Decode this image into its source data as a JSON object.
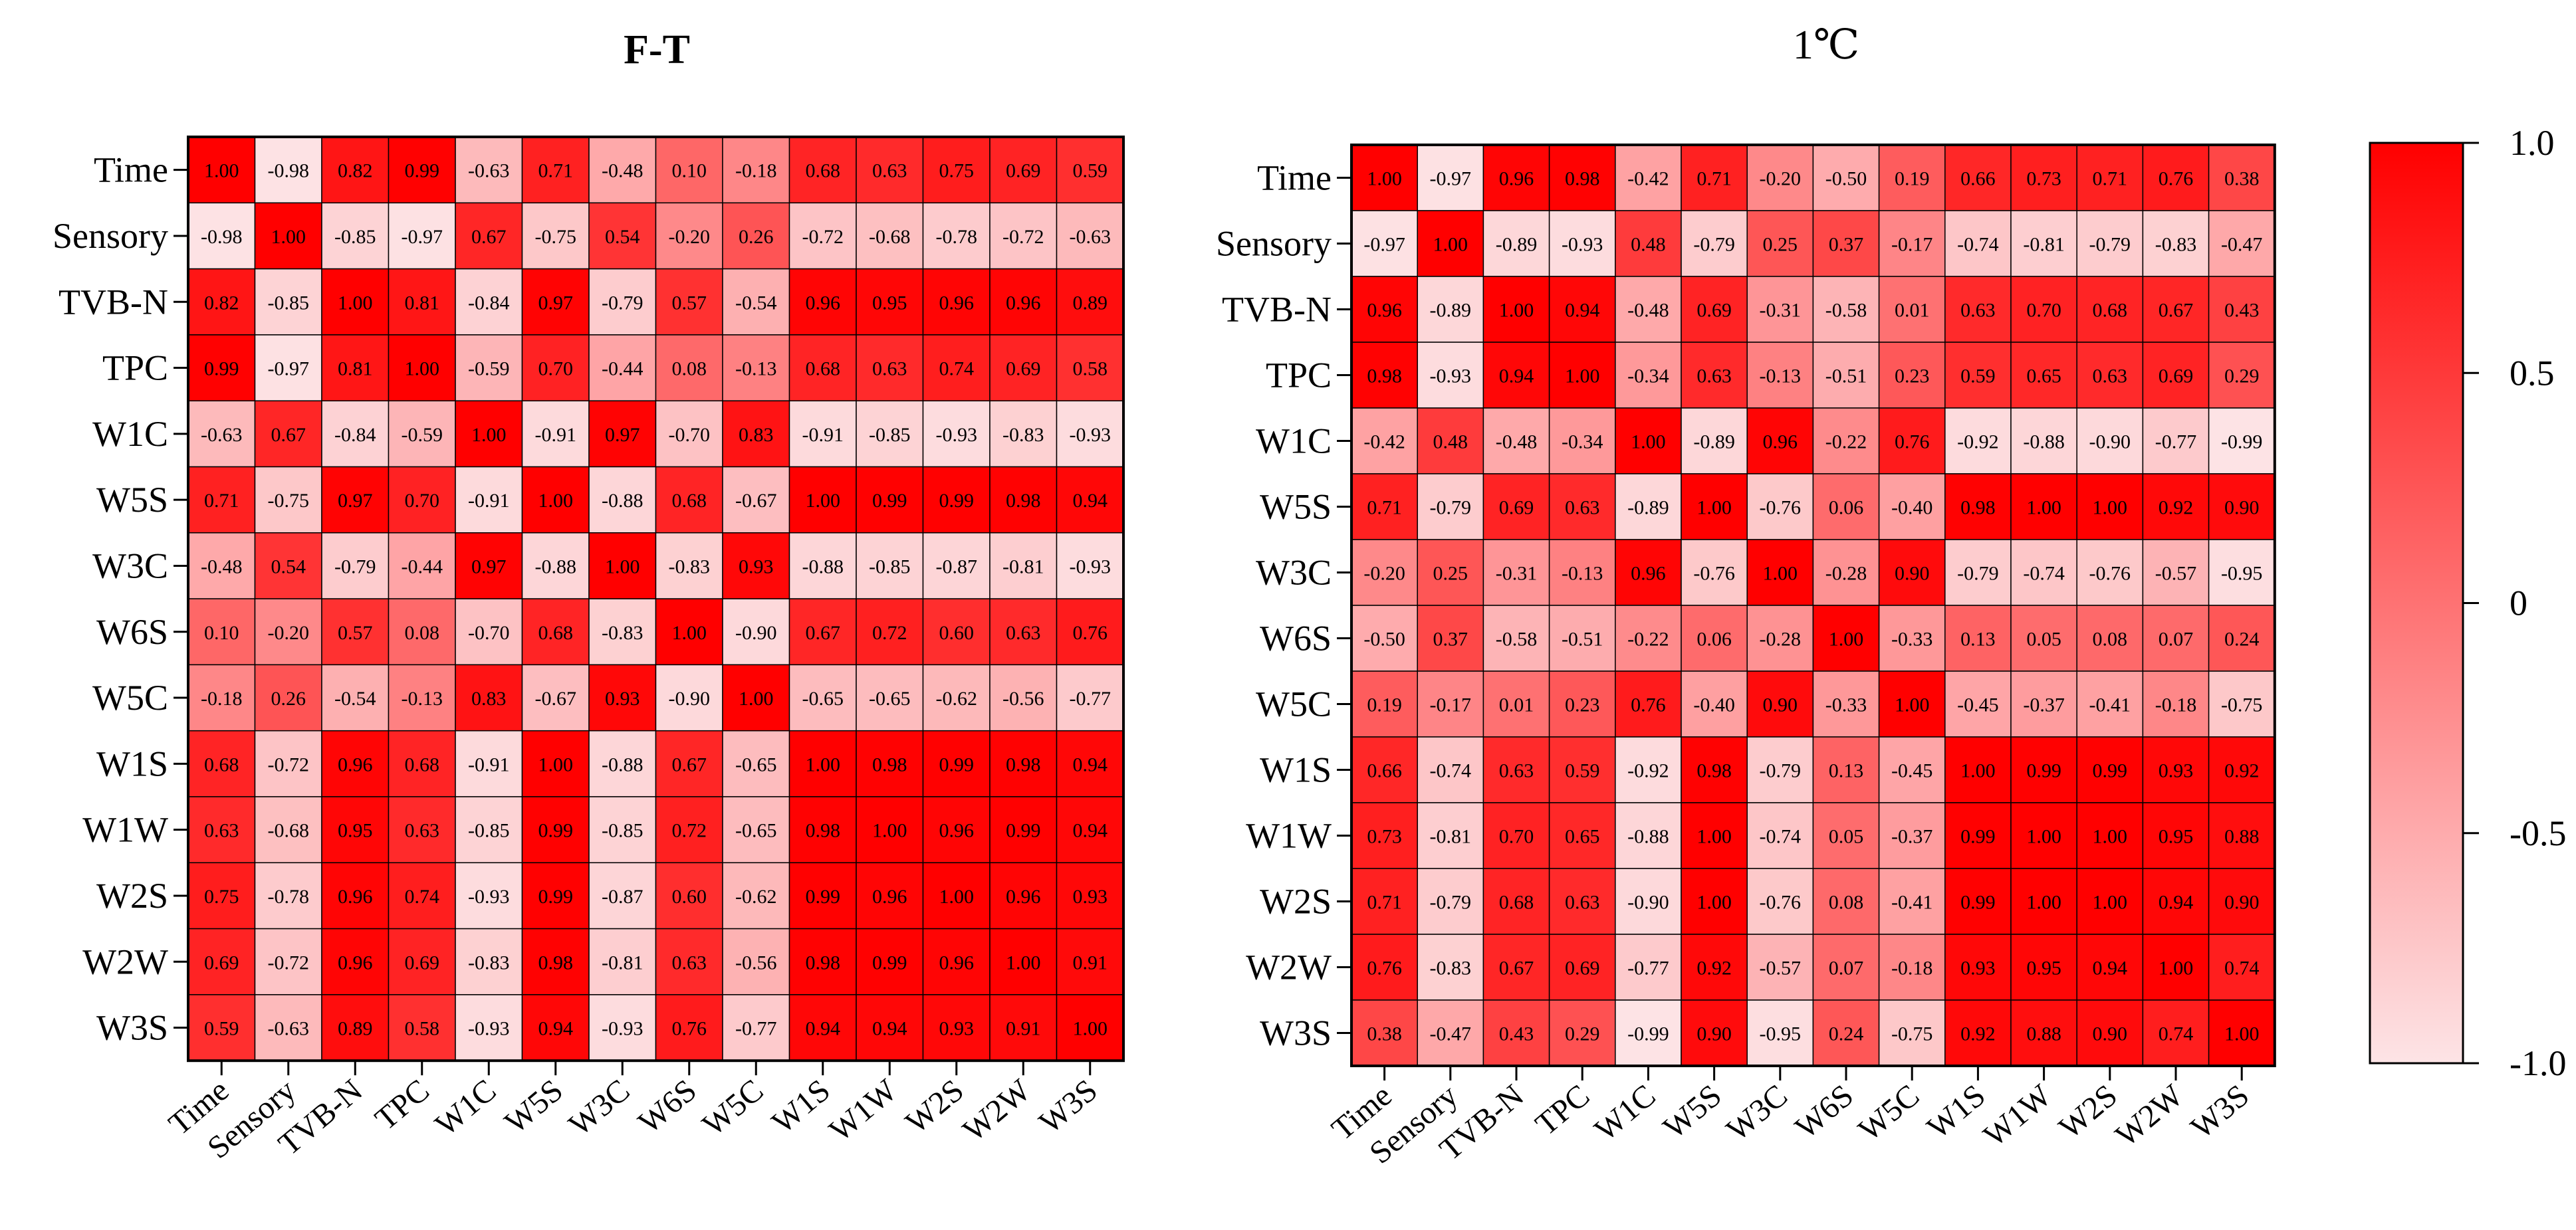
{
  "chart_data": [
    {
      "type": "heatmap",
      "title": "F-T",
      "variables": [
        "Time",
        "Sensory",
        "TVB-N",
        "TPC",
        "W1C",
        "W5S",
        "W3C",
        "W6S",
        "W5C",
        "W1S",
        "W1W",
        "W2S",
        "W2W",
        "W3S"
      ],
      "values": [
        [
          1.0,
          -0.98,
          0.82,
          0.99,
          -0.63,
          0.71,
          -0.48,
          0.1,
          -0.18,
          0.68,
          0.63,
          0.75,
          0.69,
          0.59
        ],
        [
          -0.98,
          1.0,
          -0.85,
          -0.97,
          0.67,
          -0.75,
          0.54,
          -0.2,
          0.26,
          -0.72,
          -0.68,
          -0.78,
          -0.72,
          -0.63
        ],
        [
          0.82,
          -0.85,
          1.0,
          0.81,
          -0.84,
          0.97,
          -0.79,
          0.57,
          -0.54,
          0.96,
          0.95,
          0.96,
          0.96,
          0.89
        ],
        [
          0.99,
          -0.97,
          0.81,
          1.0,
          -0.59,
          0.7,
          -0.44,
          0.08,
          -0.13,
          0.68,
          0.63,
          0.74,
          0.69,
          0.58
        ],
        [
          -0.63,
          0.67,
          -0.84,
          -0.59,
          1.0,
          -0.91,
          0.97,
          -0.7,
          0.83,
          -0.91,
          -0.85,
          -0.93,
          -0.83,
          -0.93
        ],
        [
          0.71,
          -0.75,
          0.97,
          0.7,
          -0.91,
          1.0,
          -0.88,
          0.68,
          -0.67,
          1.0,
          0.99,
          0.99,
          0.98,
          0.94
        ],
        [
          -0.48,
          0.54,
          -0.79,
          -0.44,
          0.97,
          -0.88,
          1.0,
          -0.83,
          0.93,
          -0.88,
          -0.85,
          -0.87,
          -0.81,
          -0.93
        ],
        [
          0.1,
          -0.2,
          0.57,
          0.08,
          -0.7,
          0.68,
          -0.83,
          1.0,
          -0.9,
          0.67,
          0.72,
          0.6,
          0.63,
          0.76
        ],
        [
          -0.18,
          0.26,
          -0.54,
          -0.13,
          0.83,
          -0.67,
          0.93,
          -0.9,
          1.0,
          -0.65,
          -0.65,
          -0.62,
          -0.56,
          -0.77
        ],
        [
          0.68,
          -0.72,
          0.96,
          0.68,
          -0.91,
          1.0,
          -0.88,
          0.67,
          -0.65,
          1.0,
          0.98,
          0.99,
          0.98,
          0.94
        ],
        [
          0.63,
          -0.68,
          0.95,
          0.63,
          -0.85,
          0.99,
          -0.85,
          0.72,
          -0.65,
          0.98,
          1.0,
          0.96,
          0.99,
          0.94
        ],
        [
          0.75,
          -0.78,
          0.96,
          0.74,
          -0.93,
          0.99,
          -0.87,
          0.6,
          -0.62,
          0.99,
          0.96,
          1.0,
          0.96,
          0.93
        ],
        [
          0.69,
          -0.72,
          0.96,
          0.69,
          -0.83,
          0.98,
          -0.81,
          0.63,
          -0.56,
          0.98,
          0.99,
          0.96,
          1.0,
          0.91
        ],
        [
          0.59,
          -0.63,
          0.89,
          0.58,
          -0.93,
          0.94,
          -0.93,
          0.76,
          -0.77,
          0.94,
          0.94,
          0.93,
          0.91,
          1.0
        ]
      ]
    },
    {
      "type": "heatmap",
      "title": "1℃",
      "variables": [
        "Time",
        "Sensory",
        "TVB-N",
        "TPC",
        "W1C",
        "W5S",
        "W3C",
        "W6S",
        "W5C",
        "W1S",
        "W1W",
        "W2S",
        "W2W",
        "W3S"
      ],
      "values": [
        [
          1.0,
          -0.97,
          0.96,
          0.98,
          -0.42,
          0.71,
          -0.2,
          -0.5,
          0.19,
          0.66,
          0.73,
          0.71,
          0.76,
          0.38
        ],
        [
          -0.97,
          1.0,
          -0.89,
          -0.93,
          0.48,
          -0.79,
          0.25,
          0.37,
          -0.17,
          -0.74,
          -0.81,
          -0.79,
          -0.83,
          -0.47
        ],
        [
          0.96,
          -0.89,
          1.0,
          0.94,
          -0.48,
          0.69,
          -0.31,
          -0.58,
          0.01,
          0.63,
          0.7,
          0.68,
          0.67,
          0.43
        ],
        [
          0.98,
          -0.93,
          0.94,
          1.0,
          -0.34,
          0.63,
          -0.13,
          -0.51,
          0.23,
          0.59,
          0.65,
          0.63,
          0.69,
          0.29
        ],
        [
          -0.42,
          0.48,
          -0.48,
          -0.34,
          1.0,
          -0.89,
          0.96,
          -0.22,
          0.76,
          -0.92,
          -0.88,
          -0.9,
          -0.77,
          -0.99
        ],
        [
          0.71,
          -0.79,
          0.69,
          0.63,
          -0.89,
          1.0,
          -0.76,
          0.06,
          -0.4,
          0.98,
          1.0,
          1.0,
          0.92,
          0.9
        ],
        [
          -0.2,
          0.25,
          -0.31,
          -0.13,
          0.96,
          -0.76,
          1.0,
          -0.28,
          0.9,
          -0.79,
          -0.74,
          -0.76,
          -0.57,
          -0.95
        ],
        [
          -0.5,
          0.37,
          -0.58,
          -0.51,
          -0.22,
          0.06,
          -0.28,
          1.0,
          -0.33,
          0.13,
          0.05,
          0.08,
          0.07,
          0.24
        ],
        [
          0.19,
          -0.17,
          0.01,
          0.23,
          0.76,
          -0.4,
          0.9,
          -0.33,
          1.0,
          -0.45,
          -0.37,
          -0.41,
          -0.18,
          -0.75
        ],
        [
          0.66,
          -0.74,
          0.63,
          0.59,
          -0.92,
          0.98,
          -0.79,
          0.13,
          -0.45,
          1.0,
          0.99,
          0.99,
          0.93,
          0.92
        ],
        [
          0.73,
          -0.81,
          0.7,
          0.65,
          -0.88,
          1.0,
          -0.74,
          0.05,
          -0.37,
          0.99,
          1.0,
          1.0,
          0.95,
          0.88
        ],
        [
          0.71,
          -0.79,
          0.68,
          0.63,
          -0.9,
          1.0,
          -0.76,
          0.08,
          -0.41,
          0.99,
          1.0,
          1.0,
          0.94,
          0.9
        ],
        [
          0.76,
          -0.83,
          0.67,
          0.69,
          -0.77,
          0.92,
          -0.57,
          0.07,
          -0.18,
          0.93,
          0.95,
          0.94,
          1.0,
          0.74
        ],
        [
          0.38,
          -0.47,
          0.43,
          0.29,
          -0.99,
          0.9,
          -0.95,
          0.24,
          -0.75,
          0.92,
          0.88,
          0.9,
          0.74,
          1.0
        ]
      ]
    }
  ],
  "colorbar": {
    "ticks": [
      {
        "value": 1.0,
        "label": "1.0"
      },
      {
        "value": 0.5,
        "label": "0.5"
      },
      {
        "value": 0,
        "label": "0"
      },
      {
        "value": -0.5,
        "label": "-0.5"
      },
      {
        "value": -1.0,
        "label": "-1.0"
      }
    ],
    "range": [
      -1.0,
      1.0
    ],
    "color_high": "#ff0000",
    "color_low": "#fde4e6"
  }
}
